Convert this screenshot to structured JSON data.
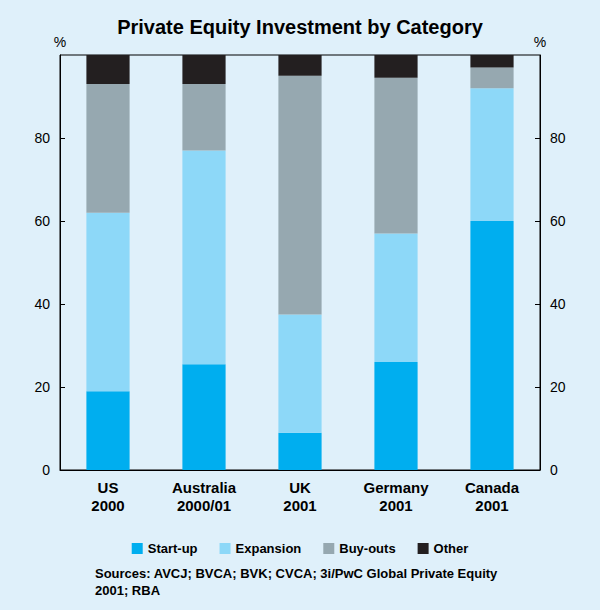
{
  "chart_data": {
    "type": "bar",
    "title": "Private Equity Investment by Category",
    "ylabel": "%",
    "source": "Sources: AVCJ; BVCA; BVK; CVCA; 3i/PwC Global Private Equity 2001; RBA",
    "categories": [
      "US\n2000",
      "Australia\n2000/01",
      "UK\n2001",
      "Germany\n2001",
      "Canada\n2001"
    ],
    "series": [
      {
        "name": "Start-up",
        "color": "#00aeef",
        "values": [
          19,
          25.5,
          9,
          26,
          60
        ]
      },
      {
        "name": "Expansion",
        "color": "#8dd8f8",
        "values": [
          43,
          51.5,
          28.5,
          31,
          32
        ]
      },
      {
        "name": "Buy-outs",
        "color": "#96a8b0",
        "values": [
          31,
          16,
          57.5,
          37.5,
          5
        ]
      },
      {
        "name": "Other",
        "color": "#231f20",
        "values": [
          7,
          7,
          5,
          5.5,
          3
        ]
      }
    ],
    "stacked": true,
    "ylim": [
      0,
      100
    ],
    "yticks": [
      0,
      20,
      40,
      60,
      80
    ],
    "grid": false,
    "legend": "bottom"
  }
}
